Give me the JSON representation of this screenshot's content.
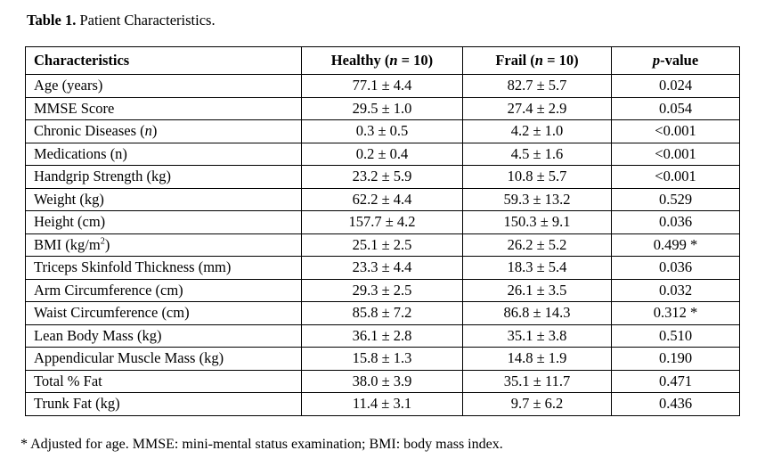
{
  "page": {
    "background": "#ffffff",
    "text_color": "#000000",
    "border_color": "#000000"
  },
  "title": {
    "label_bold": "Table 1.",
    "label_rest": " Patient Characteristics."
  },
  "table": {
    "columns": [
      {
        "key": "label",
        "align": "left",
        "header": [
          {
            "t": "Characteristics",
            "b": true
          }
        ]
      },
      {
        "key": "healthy",
        "align": "center",
        "header": [
          {
            "t": "Healthy (",
            "b": true
          },
          {
            "t": "n",
            "b": true,
            "i": true
          },
          {
            "t": " = 10)",
            "b": true
          }
        ]
      },
      {
        "key": "frail",
        "align": "center",
        "header": [
          {
            "t": "Frail (",
            "b": true
          },
          {
            "t": "n",
            "b": true,
            "i": true
          },
          {
            "t": " = 10)",
            "b": true
          }
        ]
      },
      {
        "key": "p",
        "align": "center",
        "header": [
          {
            "t": "p",
            "b": true,
            "i": true
          },
          {
            "t": "-value",
            "b": true
          }
        ]
      }
    ],
    "rows": [
      {
        "label": "Age (years)",
        "healthy": "77.1 ± 4.4",
        "frail": "82.7 ± 5.7",
        "p": "0.024"
      },
      {
        "label": "MMSE Score",
        "healthy": "29.5 ± 1.0",
        "frail": "27.4 ± 2.9",
        "p": "0.054"
      },
      {
        "label": [
          {
            "t": "Chronic Diseases ("
          },
          {
            "t": "n",
            "i": true
          },
          {
            "t": ")"
          }
        ],
        "healthy": "0.3 ± 0.5",
        "frail": "4.2 ± 1.0",
        "p": "<0.001"
      },
      {
        "label": "Medications (n)",
        "healthy": "0.2 ± 0.4",
        "frail": "4.5 ± 1.6",
        "p": "<0.001"
      },
      {
        "label": "Handgrip Strength (kg)",
        "healthy": "23.2 ± 5.9",
        "frail": "10.8 ± 5.7",
        "p": "<0.001"
      },
      {
        "label": "Weight (kg)",
        "healthy": "62.2 ± 4.4",
        "frail": "59.3 ± 13.2",
        "p": "0.529"
      },
      {
        "label": "Height (cm)",
        "healthy": "157.7 ± 4.2",
        "frail": "150.3 ± 9.1",
        "p": "0.036"
      },
      {
        "label": [
          {
            "t": "BMI (kg/m"
          },
          {
            "t": "2",
            "sup": true
          },
          {
            "t": ")"
          }
        ],
        "healthy": "25.1 ± 2.5",
        "frail": "26.2 ± 5.2",
        "p": "0.499 *"
      },
      {
        "label": "Triceps Skinfold Thickness (mm)",
        "healthy": "23.3 ± 4.4",
        "frail": "18.3 ± 5.4",
        "p": "0.036"
      },
      {
        "label": "Arm Circumference (cm)",
        "healthy": "29.3 ± 2.5",
        "frail": "26.1 ± 3.5",
        "p": "0.032"
      },
      {
        "label": "Waist Circumference (cm)",
        "healthy": "85.8 ± 7.2",
        "frail": "86.8 ± 14.3",
        "p": "0.312 *"
      },
      {
        "label": "Lean Body Mass (kg)",
        "healthy": "36.1 ± 2.8",
        "frail": "35.1 ± 3.8",
        "p": "0.510"
      },
      {
        "label": "Appendicular Muscle Mass (kg)",
        "healthy": "15.8 ± 1.3",
        "frail": "14.8 ± 1.9",
        "p": "0.190"
      },
      {
        "label": "Total % Fat",
        "healthy": "38.0 ± 3.9",
        "frail": "35.1 ± 11.7",
        "p": "0.471"
      },
      {
        "label": "Trunk Fat (kg)",
        "healthy": "11.4 ± 3.1",
        "frail": "9.7 ± 6.2",
        "p": "0.436"
      }
    ]
  },
  "footnote": "* Adjusted for age. MMSE: mini-mental status examination; BMI: body mass index."
}
